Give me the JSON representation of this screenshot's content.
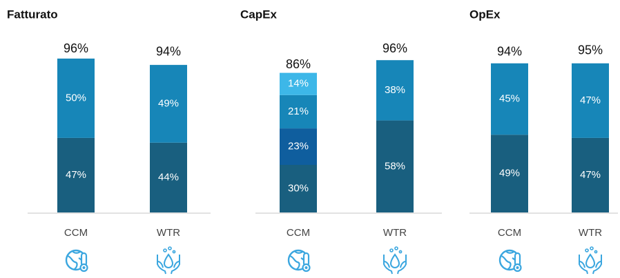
{
  "chart_data": [
    {
      "type": "bar",
      "stacked": true,
      "title": "Fatturato",
      "categories": [
        "CCM",
        "WTR"
      ],
      "series": [
        {
          "color": "#195f7f",
          "values": [
            47,
            44
          ],
          "value_labels": [
            "47%",
            "44%"
          ]
        },
        {
          "color": "#1786b8",
          "values": [
            50,
            49
          ],
          "value_labels": [
            "50%",
            "49%"
          ]
        }
      ],
      "totals": [
        96,
        94
      ],
      "total_labels": [
        "96%",
        "94%"
      ]
    },
    {
      "type": "bar",
      "stacked": true,
      "title": "CapEx",
      "categories": [
        "CCM",
        "WTR"
      ],
      "series": [
        {
          "color": "#195f7f",
          "values": [
            30,
            58
          ],
          "value_labels": [
            "30%",
            "58%"
          ]
        },
        {
          "color": "#0f5e9e",
          "values": [
            23,
            null
          ],
          "value_labels": [
            "23%",
            null
          ]
        },
        {
          "color": "#1786b8",
          "values": [
            21,
            38
          ],
          "value_labels": [
            "21%",
            "38%"
          ]
        },
        {
          "color": "#3db7e8",
          "values": [
            14,
            null
          ],
          "value_labels": [
            "14%",
            null
          ]
        }
      ],
      "totals": [
        86,
        96
      ],
      "total_labels": [
        "86%",
        "96%"
      ]
    },
    {
      "type": "bar",
      "stacked": true,
      "title": "OpEx",
      "categories": [
        "CCM",
        "WTR"
      ],
      "series": [
        {
          "color": "#195f7f",
          "values": [
            49,
            47
          ],
          "value_labels": [
            "49%",
            "47%"
          ]
        },
        {
          "color": "#1786b8",
          "values": [
            45,
            47
          ],
          "value_labels": [
            "45%",
            "47%"
          ]
        }
      ],
      "totals": [
        94,
        95
      ],
      "total_labels": [
        "94%",
        "95%"
      ]
    }
  ]
}
